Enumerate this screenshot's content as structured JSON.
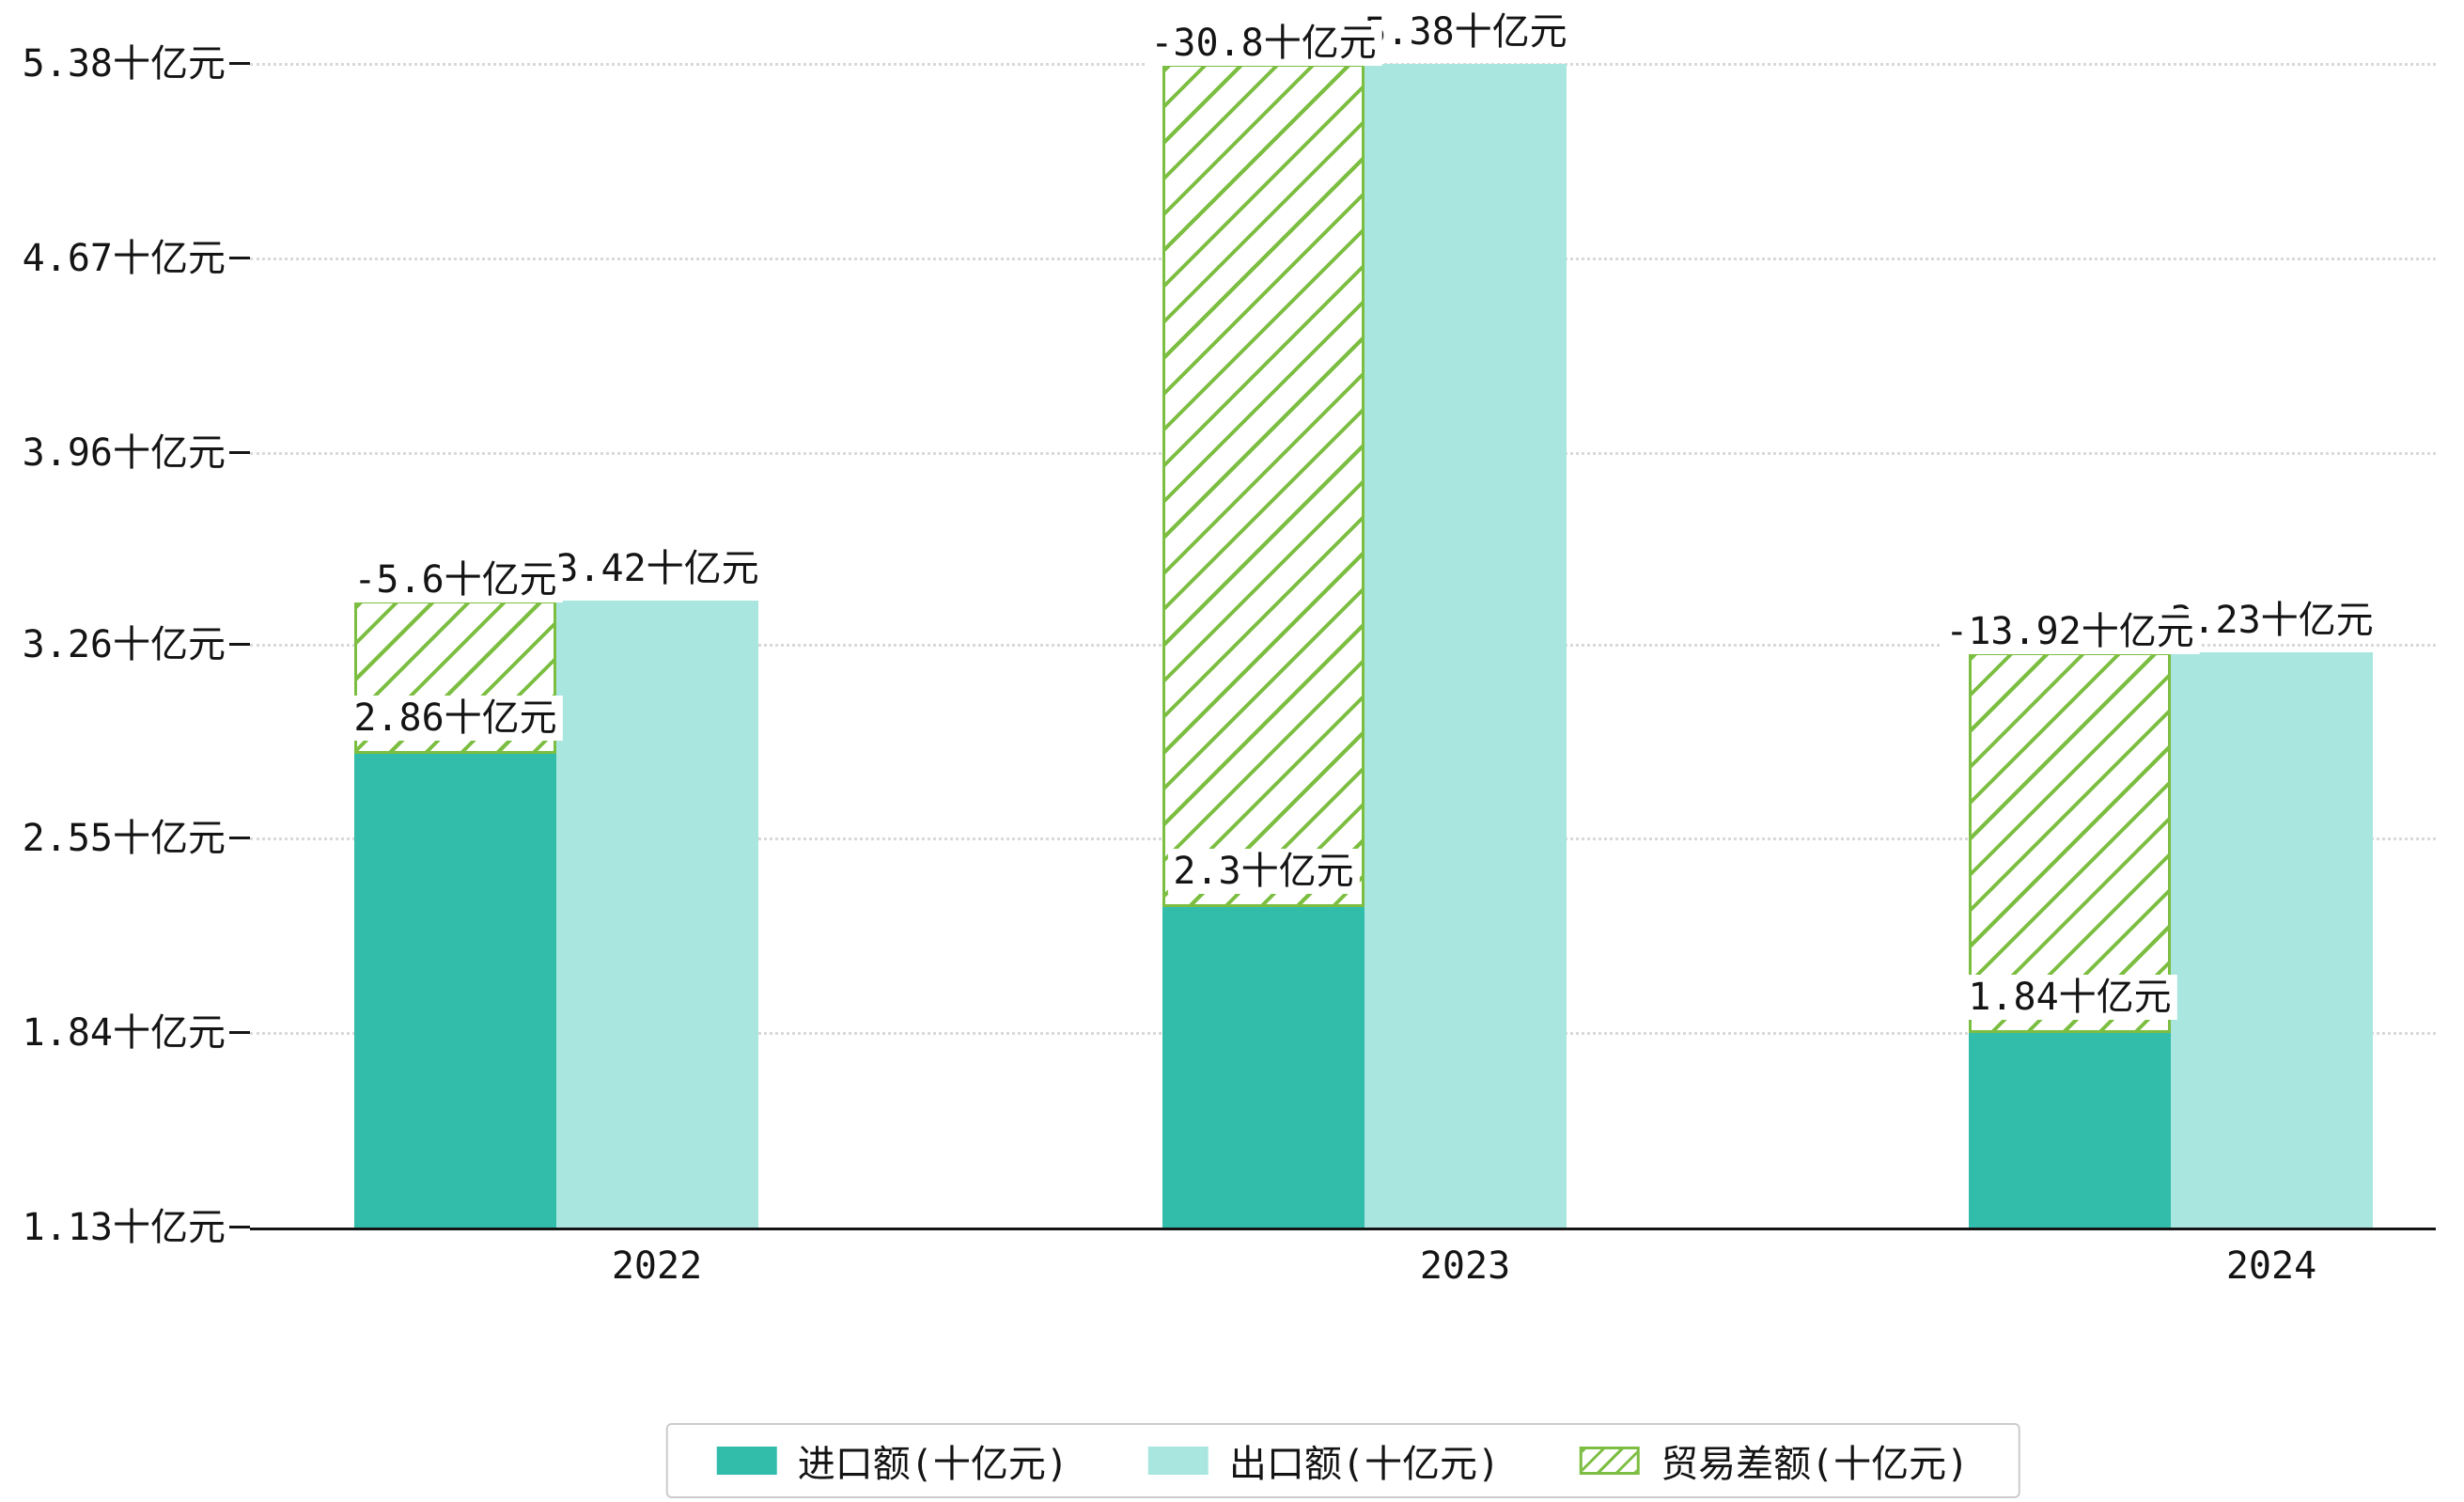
{
  "chart_data": {
    "type": "bar",
    "title": "",
    "categories": [
      "2022",
      "2023",
      "2024"
    ],
    "series": [
      {
        "name": "进口额(十亿元)",
        "type": "bar",
        "values": [
          2.86,
          2.3,
          1.84
        ],
        "value_labels": [
          "2.86十亿元",
          "2.3十亿元",
          "1.84十亿元"
        ],
        "color": "#32bdab",
        "style": "solid"
      },
      {
        "name": "出口额(十亿元)",
        "type": "bar",
        "values": [
          3.42,
          5.38,
          3.23
        ],
        "value_labels": [
          "3.42十亿元",
          "5.38十亿元",
          "3.23十亿元"
        ],
        "color": "#a8e6df",
        "style": "solid"
      },
      {
        "name": "贸易差额(十亿元)",
        "type": "span-bar",
        "values": [
          -5.6,
          -30.8,
          -13.92
        ],
        "value_labels": [
          "-5.6十亿元",
          "-30.8十亿元",
          "-13.92十亿元"
        ],
        "color": "#7cbe41",
        "style": "hatched",
        "render_hint": "hatched bar drawn over the import bar column, spanning vertically between the import bar top and the export bar top"
      }
    ],
    "y_axis": {
      "tick_labels": [
        "5.38十亿元",
        "4.67十亿元",
        "3.96十亿元",
        "3.26十亿元",
        "2.55十亿元",
        "1.84十亿元",
        "1.13十亿元"
      ],
      "tick_values": [
        5.38,
        4.67,
        3.96,
        3.26,
        2.55,
        1.84,
        1.13
      ],
      "unit": "十亿元"
    },
    "ylim": [
      1.13,
      5.38
    ],
    "grid": "horizontal dotted",
    "legend_position": "bottom-center"
  },
  "legend": {
    "items": [
      {
        "label": "进口额(十亿元)",
        "swatch": "solid-teal"
      },
      {
        "label": "出口额(十亿元)",
        "swatch": "solid-light-teal"
      },
      {
        "label": "贸易差额(十亿元)",
        "swatch": "hatched-green"
      }
    ]
  },
  "colors": {
    "import": "#32bdab",
    "export": "#a8e6df",
    "trade": "#7cbe41",
    "grid": "#d9d9d9",
    "axis": "#141414",
    "label_bg": "#ffffff",
    "legend_border": "#cccccc"
  }
}
